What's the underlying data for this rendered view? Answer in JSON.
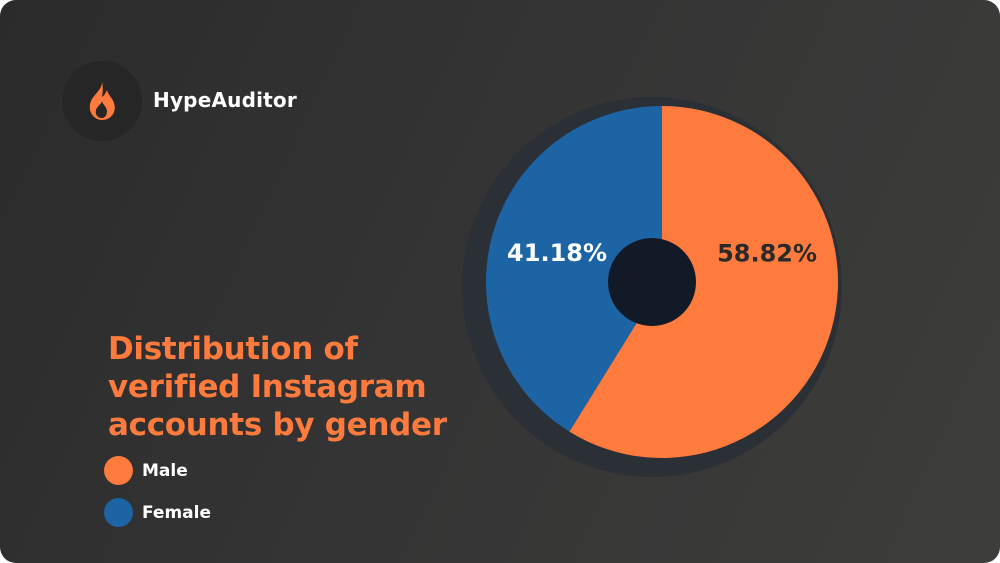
{
  "brand": {
    "name": "HypeAuditor",
    "logo_icon": "flame-icon",
    "logo_color": "#ff7a3d"
  },
  "title_lines": [
    "Distribution of",
    "verified Instagram",
    "accounts by gender"
  ],
  "legend": [
    {
      "label": "Male",
      "color": "#ff7a3d"
    },
    {
      "label": "Female",
      "color": "#1c64a4"
    }
  ],
  "chart_data": {
    "type": "pie",
    "title": "Distribution of verified Instagram accounts by gender",
    "slices": [
      {
        "label": "Male",
        "value": 58.82,
        "display": "58.82%",
        "color": "#ff7a3d"
      },
      {
        "label": "Female",
        "value": 41.18,
        "display": "41.18%",
        "color": "#1c64a4"
      }
    ],
    "start": "12 o'clock",
    "direction": "clockwise",
    "donut_center_color": "#121a28",
    "legend_position": "bottom-left"
  }
}
